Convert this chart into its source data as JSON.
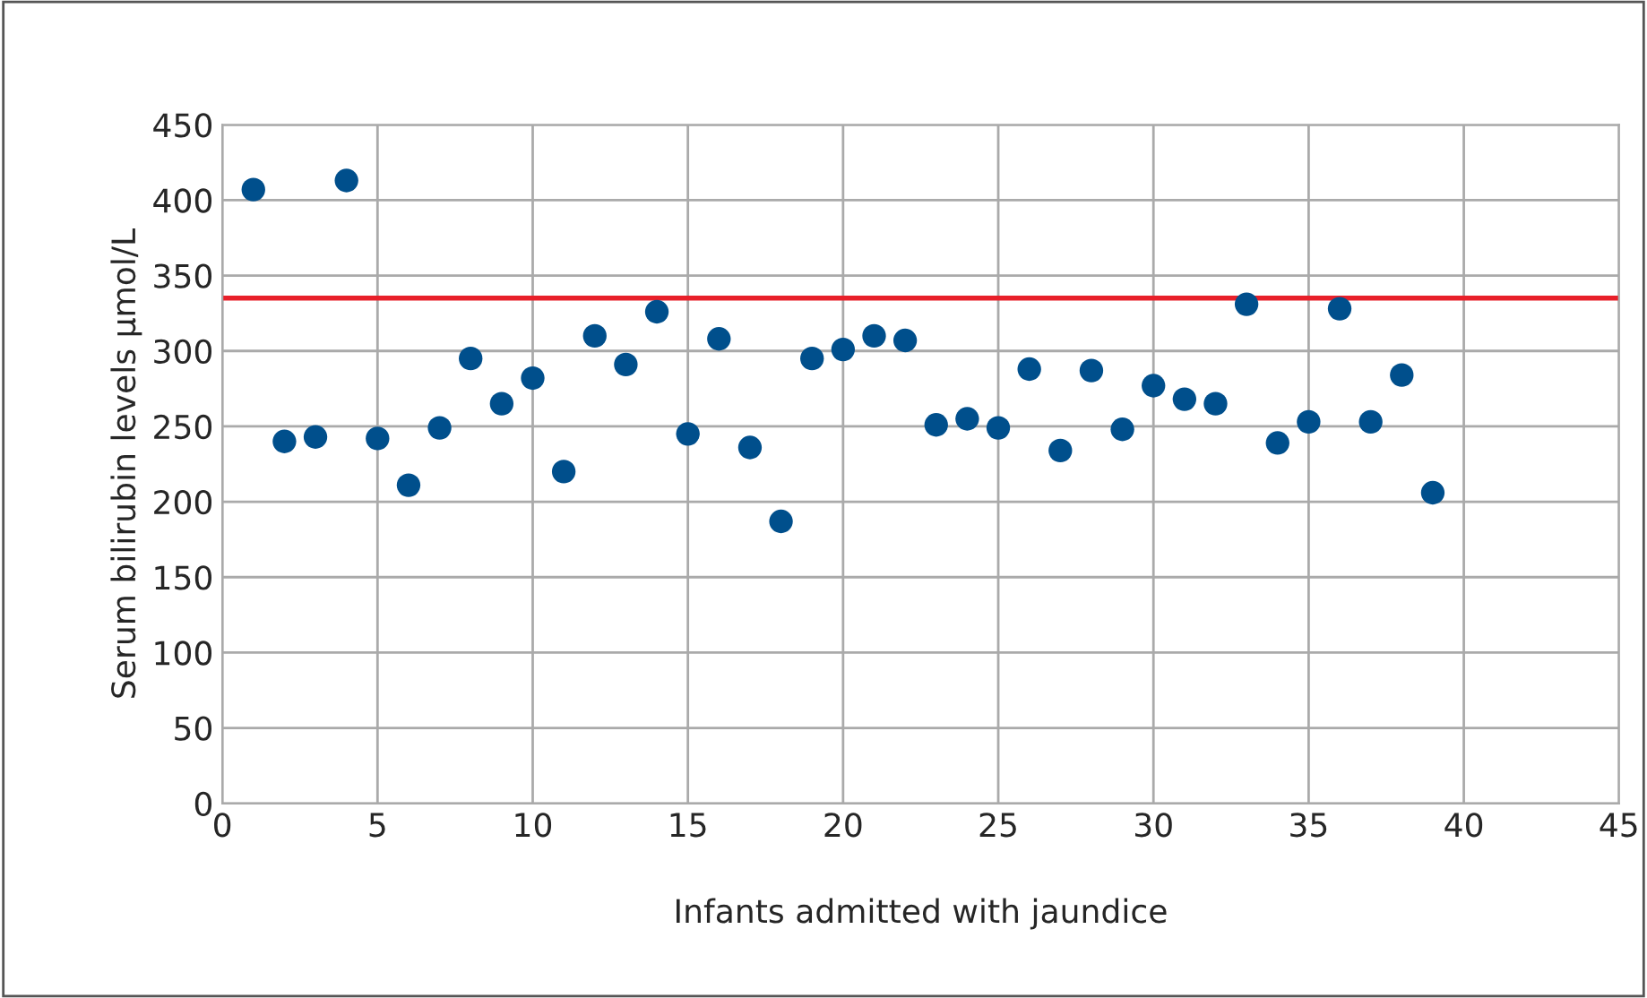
{
  "chart_data": {
    "type": "scatter",
    "xlabel": "Infants admitted with jaundice",
    "ylabel": "Serum bilirubin levels µmol/L",
    "x": [
      1,
      2,
      3,
      4,
      5,
      6,
      7,
      8,
      9,
      10,
      11,
      12,
      13,
      14,
      15,
      16,
      17,
      18,
      19,
      20,
      21,
      22,
      23,
      24,
      25,
      26,
      27,
      28,
      29,
      30,
      31,
      32,
      33,
      34,
      35,
      36,
      37,
      38,
      39
    ],
    "series": [
      {
        "color": "#004f8c",
        "values": [
          407,
          240,
          243,
          413,
          242,
          211,
          249,
          295,
          265,
          282,
          220,
          310,
          291,
          326,
          245,
          308,
          236,
          187,
          295,
          301,
          310,
          307,
          251,
          255,
          249,
          288,
          234,
          287,
          248,
          277,
          268,
          265,
          331,
          239,
          253,
          328,
          253,
          284,
          206
        ]
      }
    ],
    "xlim": [
      0,
      45
    ],
    "xticks": [
      0,
      5,
      10,
      15,
      20,
      25,
      30,
      35,
      40,
      45
    ],
    "ylim": [
      0,
      450
    ],
    "yticks": [
      0,
      50,
      100,
      150,
      200,
      250,
      300,
      350,
      400,
      450
    ],
    "ref_lines": [
      {
        "axis": "y",
        "value": 335,
        "color": "#e8202a",
        "line_style": "solid"
      }
    ],
    "grid": true,
    "marker": "circle",
    "legend": false
  }
}
